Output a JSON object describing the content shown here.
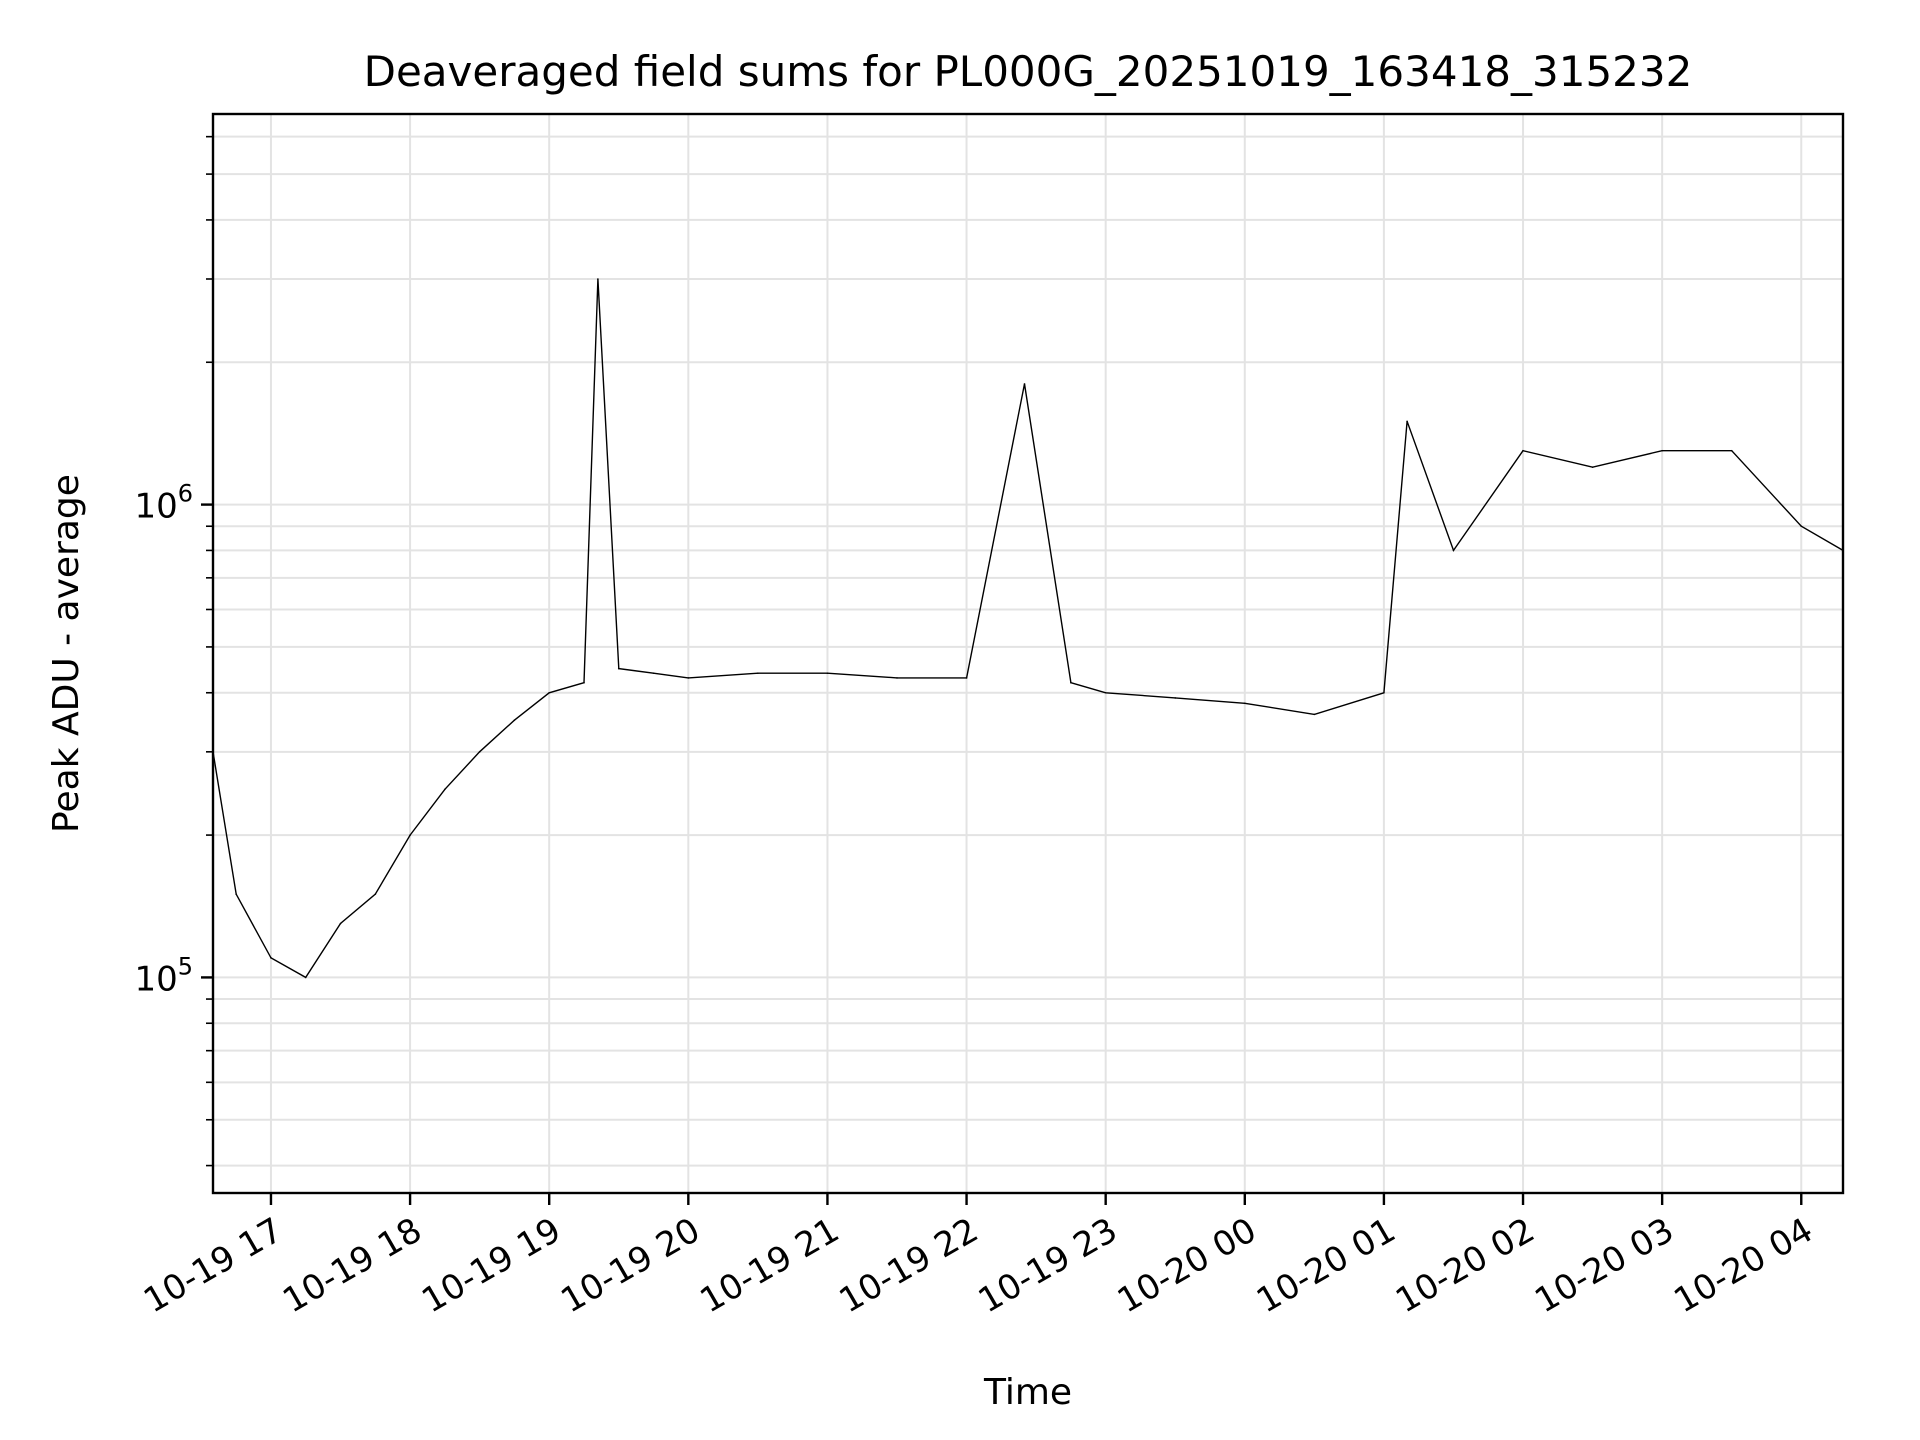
{
  "chart_data": {
    "type": "line",
    "title": "Deaveraged field sums for PL000G_20251019_163418_315232",
    "xlabel": "Time",
    "ylabel": "Peak ADU - average",
    "x_scale": "time",
    "y_scale": "log",
    "xlim": [
      "2025-10-19 16:35",
      "2025-10-20 04:18"
    ],
    "ylim": [
      35000,
      6700000
    ],
    "x_ticks": [
      "10-19 17",
      "10-19 18",
      "10-19 19",
      "10-19 20",
      "10-19 21",
      "10-19 22",
      "10-19 23",
      "10-20 00",
      "10-20 01",
      "10-20 02",
      "10-20 03",
      "10-20 04"
    ],
    "y_ticks": [
      {
        "base": "10",
        "exp": "5",
        "value": 100000
      },
      {
        "base": "10",
        "exp": "6",
        "value": 1000000
      }
    ],
    "grid": true,
    "line_color": "#000000",
    "series": [
      {
        "x": [
          "2025-10-19 16:35",
          "2025-10-19 16:45",
          "2025-10-19 17:00",
          "2025-10-19 17:15",
          "2025-10-19 17:30",
          "2025-10-19 17:45",
          "2025-10-19 18:00",
          "2025-10-19 18:15",
          "2025-10-19 18:30",
          "2025-10-19 18:45",
          "2025-10-19 19:00",
          "2025-10-19 19:15",
          "2025-10-19 19:21",
          "2025-10-19 19:30",
          "2025-10-19 19:45",
          "2025-10-19 20:00",
          "2025-10-19 20:30",
          "2025-10-19 21:00",
          "2025-10-19 21:30",
          "2025-10-19 22:00",
          "2025-10-19 22:25",
          "2025-10-19 22:45",
          "2025-10-19 23:00",
          "2025-10-19 23:30",
          "2025-10-20 00:00",
          "2025-10-20 00:30",
          "2025-10-20 01:00",
          "2025-10-20 01:10",
          "2025-10-20 01:30",
          "2025-10-20 02:00",
          "2025-10-20 02:30",
          "2025-10-20 03:00",
          "2025-10-20 03:30",
          "2025-10-20 04:00",
          "2025-10-20 04:18"
        ],
        "y": [
          300000,
          150000,
          110000,
          100000,
          130000,
          150000,
          200000,
          250000,
          300000,
          350000,
          400000,
          420000,
          3000000,
          450000,
          440000,
          430000,
          440000,
          440000,
          430000,
          430000,
          1800000,
          420000,
          400000,
          390000,
          380000,
          360000,
          400000,
          1500000,
          800000,
          1300000,
          1200000,
          1300000,
          1300000,
          900000,
          800000
        ]
      }
    ]
  }
}
